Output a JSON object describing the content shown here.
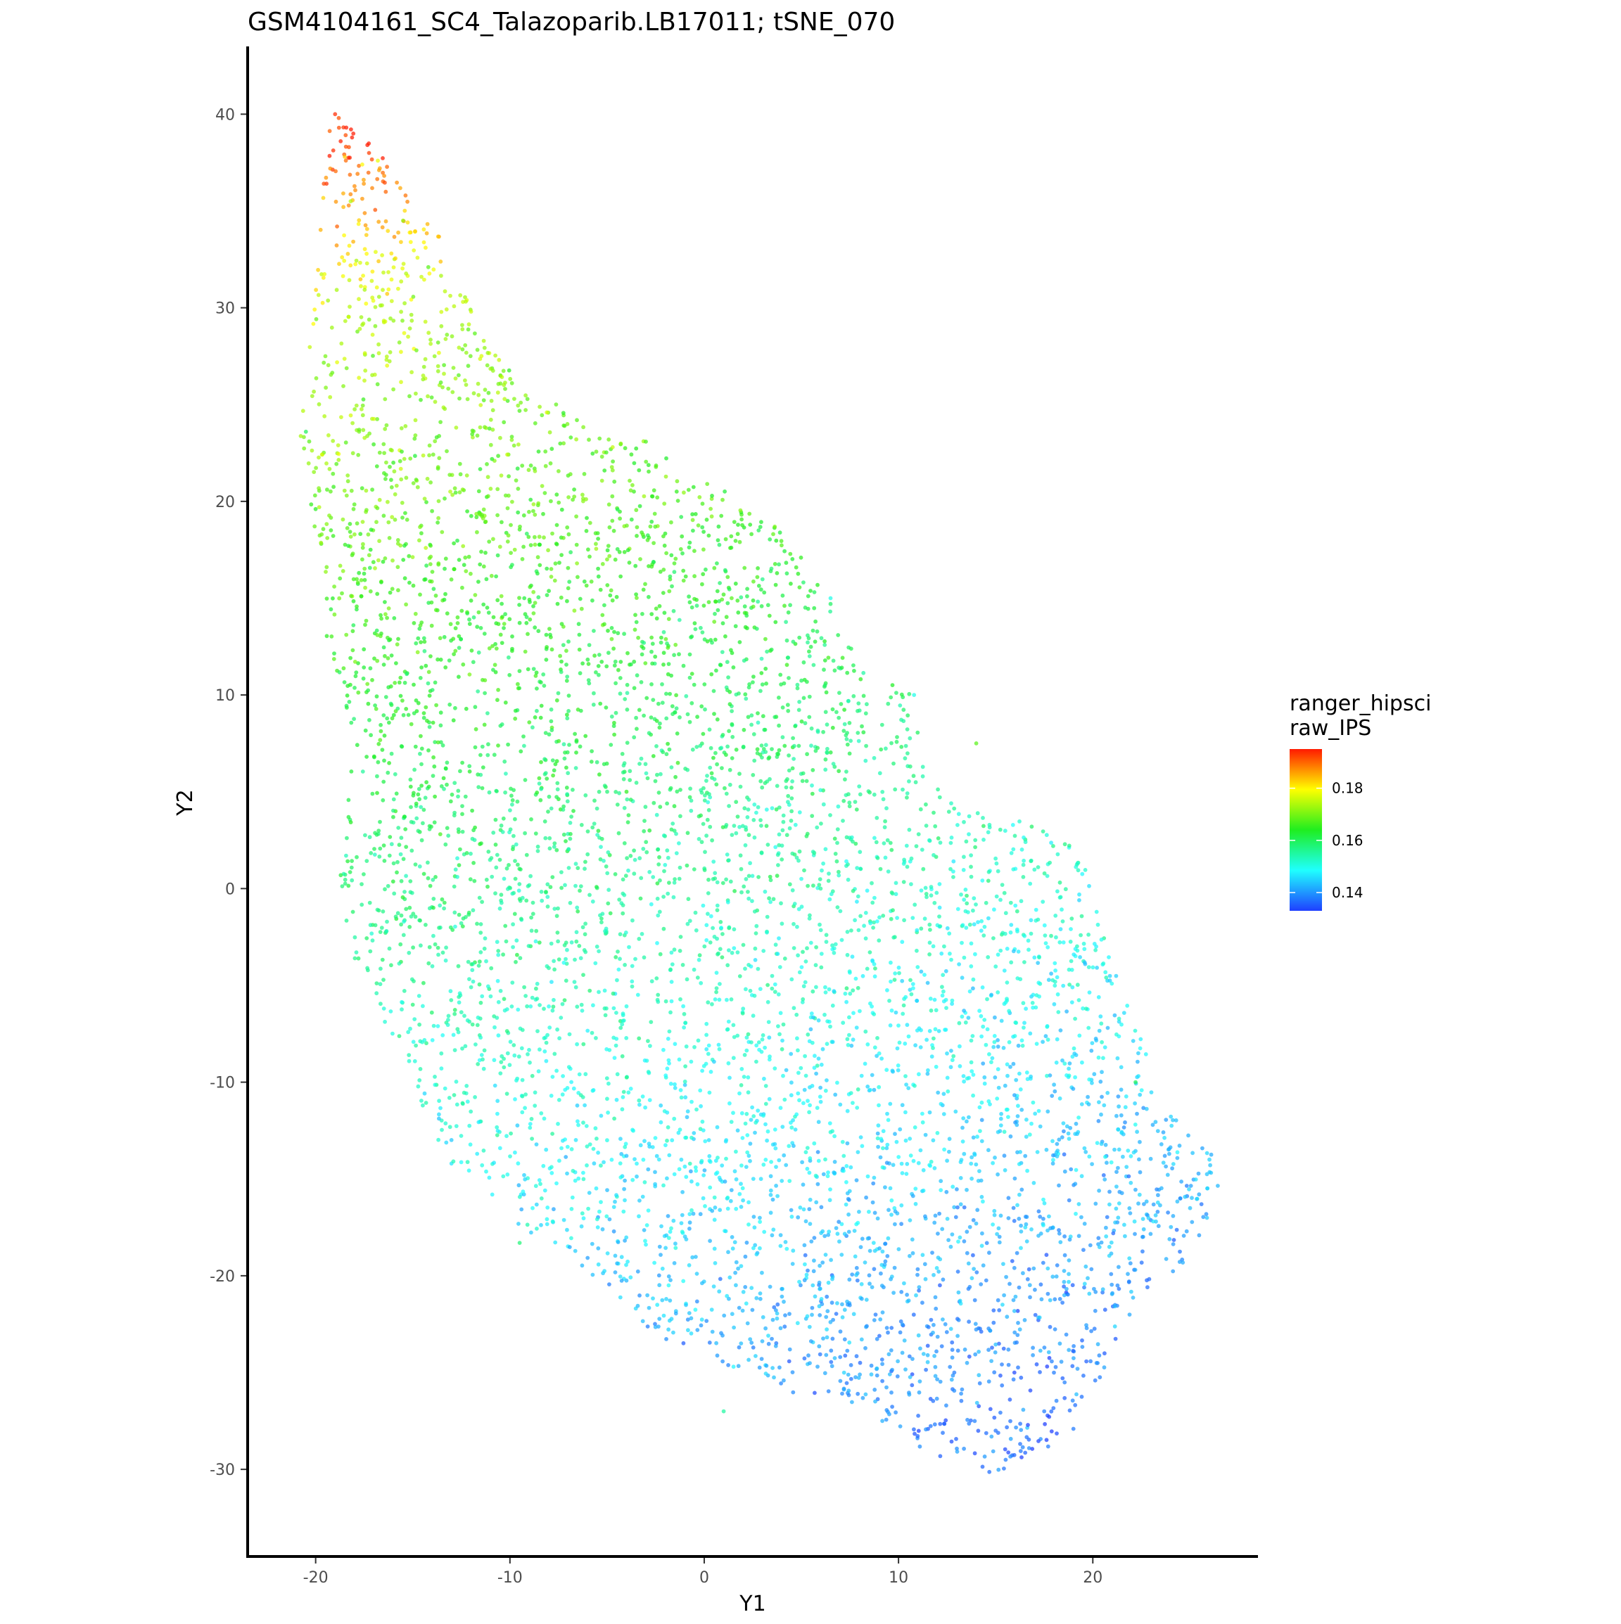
{
  "chart_data": {
    "type": "scatter",
    "title": "GSM4104161_SC4_Talazoparib.LB17011; tSNE_070",
    "xlabel": "Y1",
    "ylabel": "Y2",
    "xlim": [
      -23.5,
      28.5
    ],
    "ylim": [
      -34.5,
      43.5
    ],
    "x_ticks": [
      -20,
      -10,
      0,
      10,
      20
    ],
    "x_tick_labels": [
      "-20",
      "-10",
      "0",
      "10",
      "20"
    ],
    "y_ticks": [
      -30,
      -20,
      -10,
      0,
      10,
      20,
      30,
      40
    ],
    "y_tick_labels": [
      "-30",
      "-20",
      "-10",
      "0",
      "10",
      "20",
      "30",
      "40"
    ],
    "grid": false,
    "legend": {
      "position": "right",
      "title_lines": [
        "ranger_hipsci",
        "raw_IPS"
      ],
      "range": [
        0.133,
        0.195
      ],
      "ticks": [
        0.14,
        0.16,
        0.18
      ],
      "tick_labels": [
        "0.14",
        "0.16",
        "0.18"
      ],
      "colors": [
        "#1f3fff",
        "#1fffff",
        "#1fee1f",
        "#ffff00",
        "#ff1a00"
      ]
    },
    "series": [
      {
        "points_sample": [
          [
            -19.0,
            40.0,
            0.194
          ],
          [
            -18.8,
            39.3,
            0.192
          ],
          [
            -18.5,
            37.8,
            0.183
          ],
          [
            -17.6,
            37.4,
            0.18
          ],
          [
            -16.8,
            37.6,
            0.178
          ],
          [
            -18.2,
            35.5,
            0.174
          ],
          [
            -15.5,
            34.5,
            0.172
          ],
          [
            -14.2,
            32.1,
            0.168
          ],
          [
            -12.0,
            29.8,
            0.176
          ],
          [
            -19.5,
            27.5,
            0.17
          ],
          [
            -20.5,
            23.6,
            0.16
          ],
          [
            -16.0,
            22.0,
            0.165
          ],
          [
            -8.8,
            19.5,
            0.168
          ],
          [
            -5.0,
            17.0,
            0.17
          ],
          [
            2.8,
            18.5,
            0.16
          ],
          [
            6.5,
            15.0,
            0.15
          ],
          [
            10.8,
            10.0,
            0.15
          ],
          [
            14.0,
            7.5,
            0.168
          ],
          [
            -4.0,
            5.0,
            0.165
          ],
          [
            5.0,
            0.5,
            0.15
          ],
          [
            19.3,
            -0.6,
            0.145
          ],
          [
            -15.0,
            -6.0,
            0.158
          ],
          [
            22.2,
            -10.0,
            0.16
          ],
          [
            -5.0,
            -13.0,
            0.15
          ],
          [
            24.5,
            -16.0,
            0.14
          ],
          [
            26.0,
            -14.0,
            0.145
          ],
          [
            15.0,
            -28.0,
            0.137
          ],
          [
            17.5,
            -27.0,
            0.138
          ],
          [
            1.0,
            -27.0,
            0.155
          ],
          [
            -9.5,
            -18.3,
            0.158
          ]
        ]
      }
    ]
  }
}
